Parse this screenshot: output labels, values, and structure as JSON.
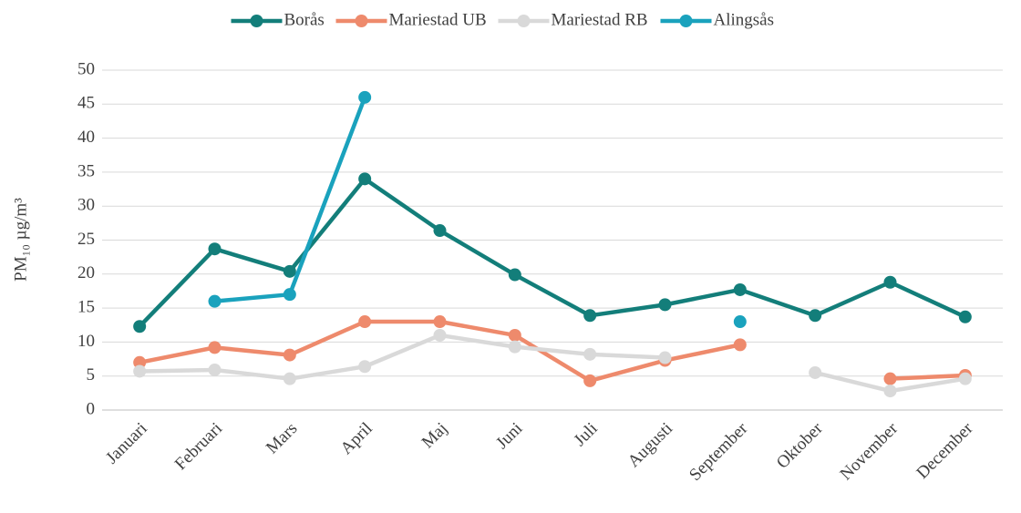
{
  "chart_data": {
    "type": "line",
    "y_label": "PM₁₀ µg/m³",
    "categories": [
      "Januari",
      "Februari",
      "Mars",
      "April",
      "Maj",
      "Juni",
      "Juli",
      "Augusti",
      "September",
      "Oktober",
      "November",
      "December"
    ],
    "series": [
      {
        "name": "Borås",
        "color": "#137e7a",
        "values": [
          12.3,
          23.7,
          20.4,
          34,
          26.4,
          19.9,
          13.9,
          15.5,
          17.7,
          13.9,
          18.8,
          13.7
        ]
      },
      {
        "name": "Mariestad UB",
        "color": "#ee8a6c",
        "values": [
          7,
          9.2,
          8.1,
          13,
          13,
          11,
          4.3,
          7.3,
          9.6,
          null,
          4.6,
          5.1
        ]
      },
      {
        "name": "Mariestad RB",
        "color": "#d9d9d9",
        "values": [
          5.7,
          5.9,
          4.6,
          6.4,
          11,
          9.3,
          8.2,
          7.7,
          null,
          5.5,
          2.8,
          4.6
        ]
      },
      {
        "name": "Alingsås",
        "color": "#1aa2bd",
        "values": [
          null,
          16,
          17,
          46,
          null,
          null,
          null,
          null,
          13,
          null,
          null,
          null
        ]
      }
    ],
    "ylim": [
      0,
      50
    ],
    "yticks": [
      0,
      5,
      10,
      15,
      20,
      25,
      30,
      35,
      40,
      45,
      50
    ],
    "grid": true,
    "legend": "top"
  }
}
